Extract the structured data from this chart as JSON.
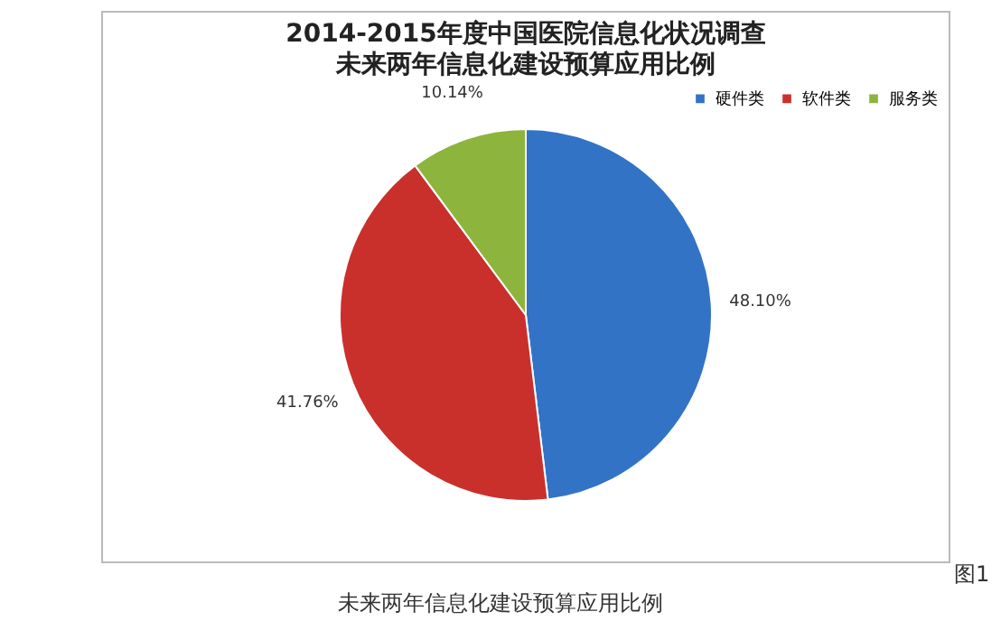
{
  "chart_data": {
    "type": "pie",
    "title": "2014-2015年度中国医院信息化状况调查",
    "subtitle": "未来两年信息化建设预算应用比例",
    "categories": [
      "硬件类",
      "软件类",
      "服务类"
    ],
    "values": [
      48.1,
      41.76,
      10.14
    ],
    "colors": [
      "#3273c6",
      "#c9302c",
      "#8db43c"
    ],
    "value_labels": [
      "48.10%",
      "41.76%",
      "10.14%"
    ],
    "legend": "top right",
    "annotations": [
      "未来两年信息化建设预算应用比例",
      "图1"
    ]
  }
}
